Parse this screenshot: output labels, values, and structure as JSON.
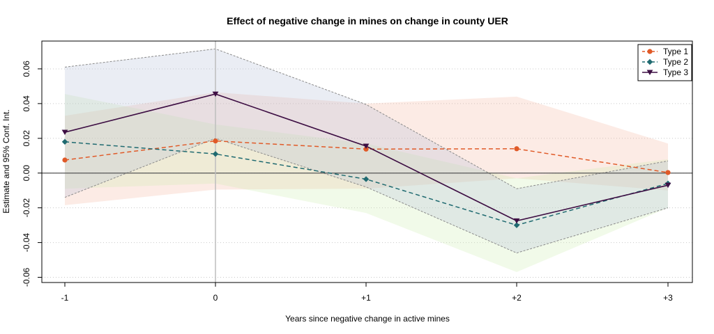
{
  "chart_data": {
    "type": "line",
    "title": "Effect of negative change in mines on change in county UER",
    "xlabel": "Years since negative change in active mines",
    "ylabel": "Estimate and 95% Conf. Int.",
    "categories": [
      "-1",
      "0",
      "+1",
      "+2",
      "+3"
    ],
    "ylim": [
      -0.063,
      0.076
    ],
    "yticks": [
      "0.06",
      "0.04",
      "0.02",
      "0.00",
      "-0.02",
      "-0.04",
      "-0.06"
    ],
    "grid": "horizontal dotted",
    "legend_position": "top-right",
    "reference_lines": {
      "y": 0,
      "x_category": "0"
    },
    "series": [
      {
        "name": "Type 1",
        "color": "#e05a28",
        "band_color": "#f3b6a0",
        "marker": "circle",
        "line_style": "dashed",
        "values": [
          0.0075,
          0.0185,
          0.0138,
          0.014,
          0.0003
        ],
        "ci_low": [
          -0.0185,
          -0.0095,
          -0.009,
          -0.003,
          -0.01
        ],
        "ci_high": [
          0.033,
          0.0465,
          0.04,
          0.044,
          0.017
        ]
      },
      {
        "name": "Type 2",
        "color": "#1f6a70",
        "band_color": "#cdeeb0",
        "marker": "diamond",
        "line_style": "dashed",
        "values": [
          0.018,
          0.011,
          -0.0035,
          -0.03,
          -0.006
        ],
        "ci_low": [
          -0.009,
          -0.006,
          -0.023,
          -0.057,
          -0.02
        ],
        "ci_high": [
          0.0455,
          0.028,
          0.017,
          -0.003,
          0.008
        ]
      },
      {
        "name": "Type 3",
        "color": "#3d0e43",
        "band_color": "#b4c0d6",
        "marker": "triangle-down",
        "line_style": "solid",
        "values": [
          0.0235,
          0.0455,
          0.0155,
          -0.0275,
          -0.007
        ],
        "ci_low": [
          -0.014,
          0.02,
          -0.008,
          -0.046,
          -0.02
        ],
        "ci_high": [
          0.061,
          0.0715,
          0.0395,
          -0.009,
          0.007
        ]
      }
    ]
  }
}
